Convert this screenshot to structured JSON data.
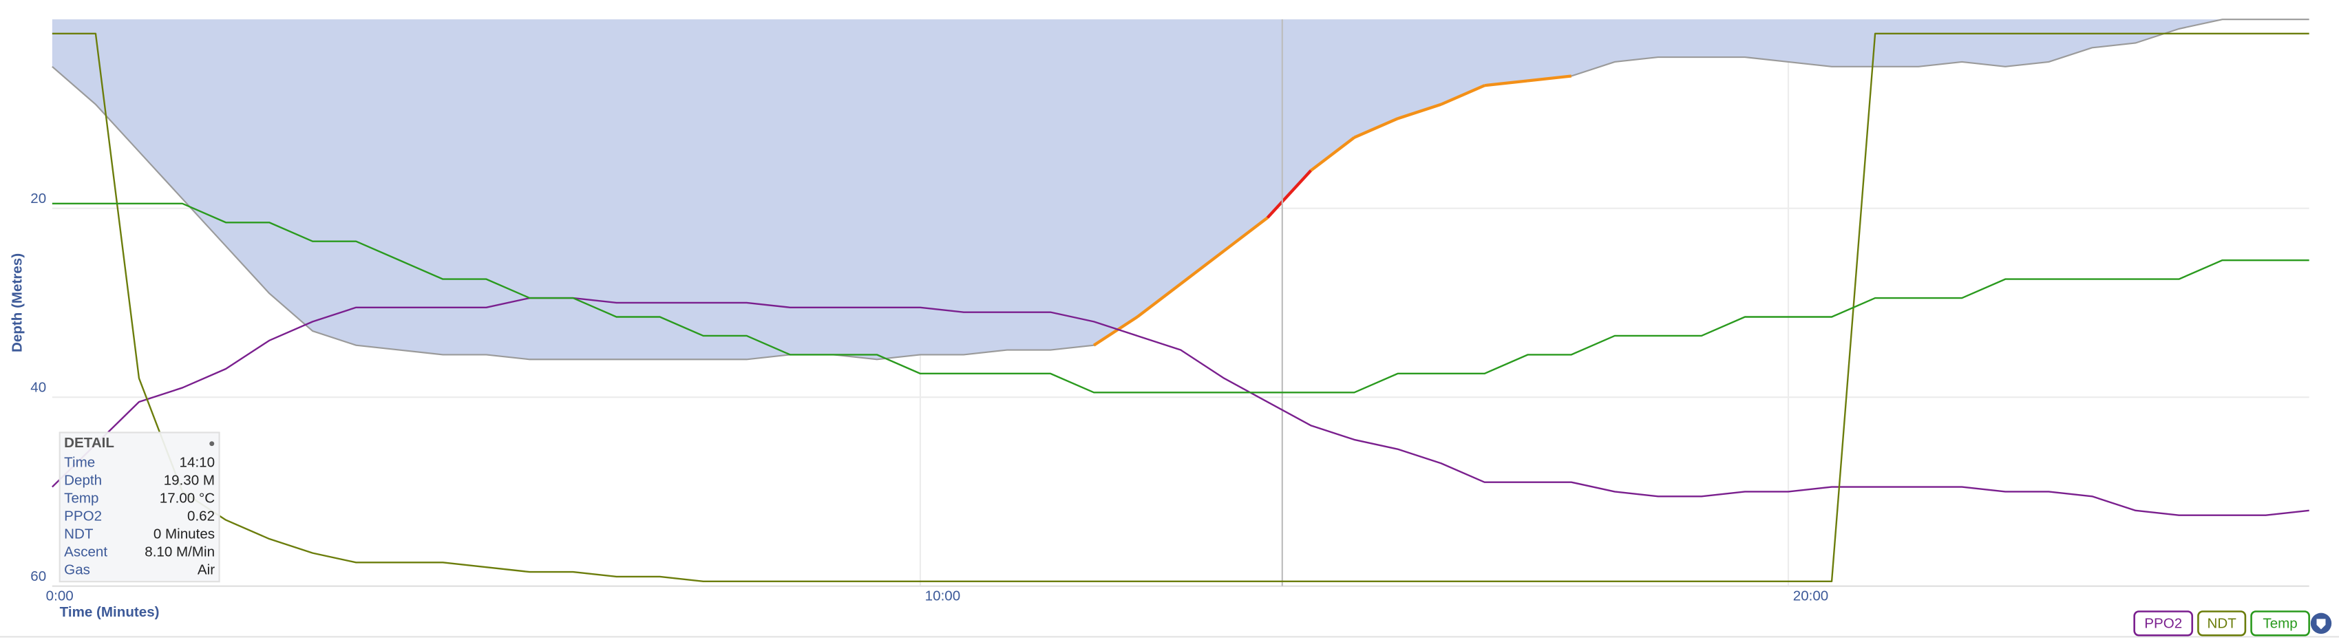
{
  "chart_data": {
    "type": "line",
    "x_label": "Time (Minutes)",
    "y_label": "Depth (Metres)",
    "xlim": [
      0,
      26
    ],
    "ylim": [
      0,
      60
    ],
    "y_inverted": true,
    "grid": true,
    "xticks": [
      {
        "value": 0,
        "label": "0:00"
      },
      {
        "value": 10,
        "label": "10:00"
      },
      {
        "value": 20,
        "label": "20:00"
      }
    ],
    "yticks": [
      20,
      40,
      60
    ],
    "legend_position": "bottom-right",
    "x": [
      0,
      0.5,
      1,
      1.5,
      2,
      2.5,
      3,
      3.5,
      4,
      4.5,
      5,
      5.5,
      6,
      6.5,
      7,
      7.5,
      8,
      8.5,
      9,
      9.5,
      10,
      10.5,
      11,
      11.5,
      12,
      12.5,
      13,
      13.5,
      14,
      14.5,
      15,
      15.5,
      16,
      16.5,
      17,
      17.5,
      18,
      18.5,
      19,
      19.5,
      20,
      20.5,
      21,
      21.5,
      22,
      22.5,
      23,
      23.5,
      24,
      24.5,
      25,
      25.5,
      26
    ],
    "depth": {
      "color": "#9a9a9a",
      "fill": "#c9d3ec",
      "ascent_color": "#f39018",
      "fast_ascent_color": "#e8201a",
      "values": [
        5,
        9,
        14,
        19,
        24,
        29,
        33,
        34.5,
        35,
        35.5,
        35.5,
        36,
        36,
        36,
        36,
        36,
        36,
        35.5,
        35.5,
        36,
        35.5,
        35.5,
        35,
        35,
        34.5,
        31.5,
        28,
        24.5,
        21,
        16,
        12.5,
        10.5,
        9,
        7,
        6.5,
        6,
        4.5,
        4,
        4,
        4,
        4.5,
        5,
        5,
        5,
        4.5,
        5,
        4.5,
        3,
        2.5,
        1,
        0,
        0,
        0
      ]
    },
    "series": [
      {
        "name": "PPO2",
        "color": "#7a1f8e",
        "values": [
          49.5,
          45,
          40.5,
          39,
          37,
          34,
          32,
          30.5,
          30.5,
          30.5,
          30.5,
          29.5,
          29.5,
          30,
          30,
          30,
          30,
          30.5,
          30.5,
          30.5,
          30.5,
          31,
          31,
          31,
          32,
          33.5,
          35,
          38,
          40.5,
          43,
          44.5,
          45.5,
          47,
          49,
          49,
          49,
          50,
          50.5,
          50.5,
          50,
          50,
          49.5,
          49.5,
          49.5,
          49.5,
          50,
          50,
          50.5,
          52,
          52.5,
          52.5,
          52.5,
          52
        ]
      },
      {
        "name": "NDT",
        "color": "#6b7d0b",
        "values": [
          1.5,
          1.5,
          38,
          50,
          53,
          55,
          56.5,
          57.5,
          57.5,
          57.5,
          58,
          58.5,
          58.5,
          59,
          59,
          59.5,
          59.5,
          59.5,
          59.5,
          59.5,
          59.5,
          59.5,
          59.5,
          59.5,
          59.5,
          59.5,
          59.5,
          59.5,
          59.5,
          59.5,
          59.5,
          59.5,
          59.5,
          59.5,
          59.5,
          59.5,
          59.5,
          59.5,
          59.5,
          59.5,
          59.5,
          59.5,
          1.5,
          1.5,
          1.5,
          1.5,
          1.5,
          1.5,
          1.5,
          1.5,
          1.5,
          1.5,
          1.5
        ]
      },
      {
        "name": "Temp",
        "color": "#2a9a1e",
        "values": [
          19.5,
          19.5,
          19.5,
          19.5,
          21.5,
          21.5,
          23.5,
          23.5,
          25.5,
          27.5,
          27.5,
          29.5,
          29.5,
          31.5,
          31.5,
          33.5,
          33.5,
          35.5,
          35.5,
          35.5,
          37.5,
          37.5,
          37.5,
          37.5,
          39.5,
          39.5,
          39.5,
          39.5,
          39.5,
          39.5,
          39.5,
          37.5,
          37.5,
          37.5,
          35.5,
          35.5,
          33.5,
          33.5,
          33.5,
          31.5,
          31.5,
          31.5,
          29.5,
          29.5,
          29.5,
          27.5,
          27.5,
          27.5,
          27.5,
          27.5,
          25.5,
          25.5,
          25.5
        ]
      }
    ],
    "cursor": {
      "value": 14.17,
      "label": "14:10"
    },
    "tooltip": {
      "title": "DETAIL",
      "rows": [
        [
          "Time",
          "14:10"
        ],
        [
          "Depth",
          "19.30 M"
        ],
        [
          "Temp",
          "17.00 °C"
        ],
        [
          "PPO2",
          "0.62"
        ],
        [
          "NDT",
          "0 Minutes"
        ],
        [
          "Ascent",
          "8.10 M/Min"
        ],
        [
          "Gas",
          "Air"
        ]
      ]
    }
  }
}
